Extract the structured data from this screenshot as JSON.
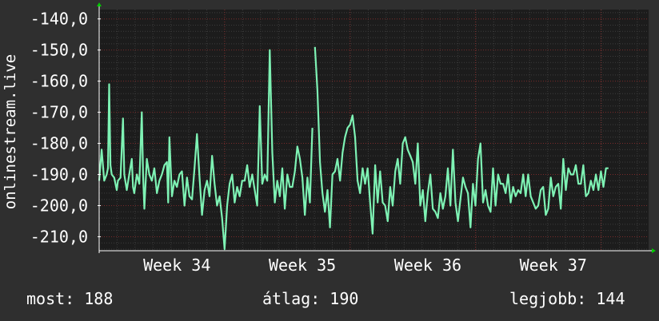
{
  "chart_data": {
    "type": "line",
    "title": "",
    "ylabel": "onlinestream.live",
    "xlabel": "",
    "ylim": [
      -214.5,
      -137
    ],
    "xlim": [
      0,
      4.38
    ],
    "y_ticks": [
      -140,
      -150,
      -160,
      -170,
      -180,
      -190,
      -200,
      -210
    ],
    "y_tick_labels": [
      "-140,0",
      "-150,0",
      "-160,0",
      "-170,0",
      "-180,0",
      "-190,0",
      "-200,0",
      "-210,0"
    ],
    "x_tick_labels": [
      {
        "value": 0.62,
        "label": "Week 34"
      },
      {
        "value": 1.62,
        "label": "Week 35"
      },
      {
        "value": 2.62,
        "label": "Week 36"
      },
      {
        "value": 3.62,
        "label": "Week 37"
      }
    ],
    "x_minor_step": 0.143,
    "grid": true,
    "colors": {
      "background": "#2f2f2f",
      "plot_area": "#1c1c1c",
      "grid_minor": "#3c3c3c",
      "grid_major": "#7a2a2a",
      "line": "#7ef2b4",
      "axis": "#ffffff",
      "arrow": "#00cc00"
    },
    "series": [
      {
        "segments": [
          {
            "x": [
              0.0,
              0.02,
              0.04,
              0.06,
              0.07,
              0.08,
              0.09,
              0.1,
              0.12,
              0.14,
              0.15,
              0.17,
              0.19,
              0.2,
              0.22,
              0.24,
              0.26,
              0.27,
              0.28,
              0.3,
              0.32,
              0.34,
              0.35,
              0.36,
              0.37,
              0.38,
              0.4,
              0.42,
              0.44,
              0.46,
              0.48,
              0.5,
              0.52,
              0.54,
              0.55,
              0.56,
              0.58,
              0.6,
              0.62,
              0.64,
              0.66,
              0.68,
              0.7,
              0.72,
              0.74,
              0.76,
              0.78,
              0.8,
              0.82,
              0.84,
              0.86,
              0.88,
              0.9,
              0.92,
              0.94,
              0.96,
              0.98,
              1.0,
              1.02,
              1.04,
              1.06,
              1.08,
              1.1,
              1.12,
              1.14,
              1.16,
              1.18,
              1.2,
              1.22,
              1.24,
              1.26,
              1.28,
              1.3,
              1.32,
              1.34,
              1.36,
              1.38,
              1.4,
              1.42,
              1.44,
              1.46,
              1.48,
              1.5,
              1.52,
              1.54,
              1.56,
              1.58,
              1.6,
              1.62,
              1.64,
              1.66,
              1.68,
              1.7,
              1.72,
              1.74,
              1.76,
              1.78,
              1.8,
              1.82,
              1.84,
              1.86,
              1.88,
              1.9,
              1.92,
              1.94,
              1.96,
              1.98,
              2.0,
              2.02,
              2.04,
              2.06,
              2.08,
              2.1,
              2.12,
              2.14,
              2.16,
              2.18,
              2.2,
              2.22,
              2.24,
              2.26,
              2.28,
              2.3,
              2.32,
              2.34,
              2.36,
              2.38,
              2.4,
              2.42,
              2.44,
              2.46,
              2.48,
              2.5,
              2.52,
              2.54,
              2.56,
              2.58,
              2.6,
              2.62,
              2.64,
              2.66,
              2.68,
              2.7,
              2.72,
              2.74,
              2.76,
              2.78,
              2.8,
              2.82,
              2.84,
              2.86,
              2.88,
              2.9,
              2.92,
              2.94,
              2.96,
              2.98,
              3.0,
              3.02,
              3.04,
              3.06,
              3.08,
              3.1,
              3.12,
              3.14,
              3.16,
              3.18,
              3.2,
              3.22,
              3.24,
              3.26,
              3.28,
              3.3,
              3.32,
              3.34,
              3.36,
              3.38,
              3.4,
              3.42,
              3.44,
              3.46,
              3.48,
              3.5,
              3.52,
              3.54,
              3.56,
              3.58,
              3.6,
              3.62,
              3.64,
              3.66,
              3.68,
              3.7,
              3.72,
              3.74,
              3.76,
              3.78,
              3.8,
              3.82,
              3.84,
              3.86,
              3.88,
              3.9,
              3.92,
              3.94,
              3.96,
              3.98,
              4.0,
              4.02,
              4.04,
              4.06,
              4.08,
              4.1,
              4.12,
              4.14,
              4.16,
              4.18,
              4.2,
              4.22,
              4.24,
              4.26,
              4.28,
              4.3,
              4.32,
              4.34,
              4.36,
              4.38
            ],
            "y": []
          }
        ],
        "gap": [
          1.7,
          1.72
        ],
        "values_note_free": true
      }
    ]
  },
  "footer": {
    "current": "most: 188",
    "average": "átlag: 190",
    "best": "legjobb: 144"
  }
}
